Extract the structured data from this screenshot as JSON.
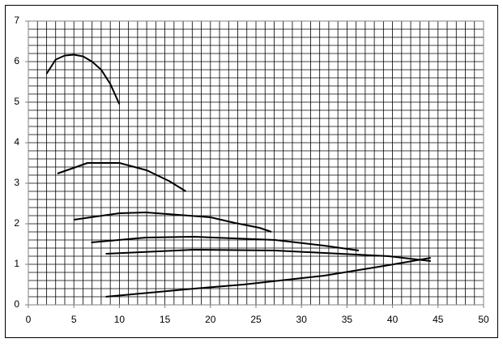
{
  "chart_data": {
    "type": "line",
    "xlim": [
      0,
      50
    ],
    "xticks": [
      0,
      5,
      10,
      15,
      20,
      25,
      30,
      35,
      40,
      45,
      50
    ],
    "ylim": [
      0,
      7
    ],
    "yticks": [
      0,
      1,
      2,
      3,
      4,
      5,
      6,
      7
    ],
    "grid": true,
    "grid_step": {
      "x": 1,
      "y": 0.2
    },
    "series": [
      {
        "color": "#000000",
        "x": [
          2,
          3,
          4,
          5,
          6,
          7,
          8,
          9,
          10
        ],
        "values": [
          5.7,
          6.05,
          6.15,
          6.17,
          6.13,
          6.0,
          5.8,
          5.45,
          4.95
        ]
      },
      {
        "color": "#000000",
        "x": [
          3.2,
          5,
          6.5,
          10,
          13,
          15.5,
          17.3
        ],
        "values": [
          3.24,
          3.38,
          3.5,
          3.5,
          3.32,
          3.05,
          2.8
        ]
      },
      {
        "color": "#000000",
        "x": [
          5,
          10,
          12.9,
          20,
          22.7,
          25.4,
          26.7
        ],
        "values": [
          2.1,
          2.26,
          2.28,
          2.16,
          2.02,
          1.9,
          1.8
        ]
      },
      {
        "color": "#000000",
        "x": [
          6.9,
          12.9,
          18.2,
          27.1,
          32.5,
          36.3
        ],
        "values": [
          1.54,
          1.66,
          1.68,
          1.6,
          1.46,
          1.34
        ]
      },
      {
        "color": "#000000",
        "x": [
          8.5,
          18.2,
          27.1,
          32.5,
          39.6,
          44.2
        ],
        "values": [
          1.26,
          1.36,
          1.34,
          1.28,
          1.2,
          1.08
        ]
      },
      {
        "color": "#000000",
        "x": [
          8.5,
          18.2,
          23.6,
          32.5,
          39.6,
          44.2
        ],
        "values": [
          0.2,
          0.4,
          0.5,
          0.72,
          0.98,
          1.16
        ]
      }
    ]
  }
}
